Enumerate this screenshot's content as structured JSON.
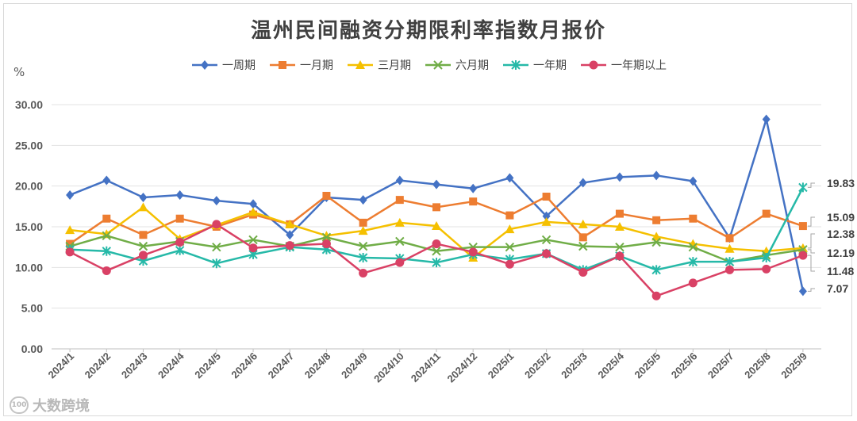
{
  "watermark": {
    "text": "大数跨境",
    "logo_text": "100"
  },
  "chart_data": {
    "type": "line",
    "title": "温州民间融资分期限利率指数月报价",
    "ylabel": "%",
    "xlabel": "",
    "ylim": [
      0,
      30
    ],
    "yticks": [
      "0.00",
      "5.00",
      "10.00",
      "15.00",
      "20.00",
      "25.00",
      "30.00"
    ],
    "grid": true,
    "legend_position": "top",
    "categories": [
      "2024/1",
      "2024/2",
      "2024/3",
      "2024/4",
      "2024/5",
      "2024/6",
      "2024/7",
      "2024/8",
      "2024/9",
      "2024/10",
      "2024/11",
      "2024/12",
      "2025/1",
      "2025/2",
      "2025/3",
      "2025/4",
      "2025/5",
      "2025/6",
      "2025/7",
      "2025/8",
      "2025/9"
    ],
    "series": [
      {
        "name": "一周期",
        "color": "#4472c4",
        "marker": "diamond",
        "values": [
          18.9,
          20.7,
          18.6,
          18.9,
          18.2,
          17.8,
          14.0,
          18.6,
          18.3,
          20.7,
          20.2,
          19.7,
          21.0,
          16.3,
          20.4,
          21.1,
          21.3,
          20.6,
          13.6,
          28.2,
          7.07
        ]
      },
      {
        "name": "一月期",
        "color": "#ed7d31",
        "marker": "square",
        "values": [
          12.9,
          16.0,
          14.0,
          16.0,
          15.0,
          16.5,
          15.3,
          18.8,
          15.5,
          18.3,
          17.4,
          18.1,
          16.4,
          18.7,
          13.7,
          16.6,
          15.8,
          16.0,
          13.6,
          16.6,
          15.09
        ]
      },
      {
        "name": "三月期",
        "color": "#f5c000",
        "marker": "triangle",
        "values": [
          14.6,
          14.1,
          17.4,
          13.5,
          15.2,
          16.8,
          15.3,
          13.9,
          14.5,
          15.5,
          15.1,
          11.2,
          14.7,
          15.6,
          15.3,
          15.0,
          13.8,
          12.9,
          12.3,
          12.0,
          12.38
        ]
      },
      {
        "name": "六月期",
        "color": "#70ad47",
        "marker": "x",
        "values": [
          12.6,
          13.9,
          12.6,
          13.2,
          12.5,
          13.4,
          12.6,
          13.7,
          12.6,
          13.2,
          12.0,
          12.5,
          12.5,
          13.4,
          12.6,
          12.5,
          13.1,
          12.5,
          10.7,
          11.5,
          12.19
        ]
      },
      {
        "name": "一年期",
        "color": "#26b9a8",
        "marker": "asterisk",
        "values": [
          12.2,
          12.0,
          10.8,
          12.1,
          10.5,
          11.6,
          12.5,
          12.2,
          11.2,
          11.1,
          10.6,
          11.6,
          11.0,
          11.7,
          9.7,
          11.4,
          9.7,
          10.7,
          10.7,
          11.2,
          19.83
        ]
      },
      {
        "name": "一年期以上",
        "color": "#d94165",
        "marker": "circle",
        "values": [
          11.9,
          9.6,
          11.5,
          13.1,
          15.3,
          12.4,
          12.7,
          12.9,
          9.3,
          10.6,
          12.9,
          11.9,
          10.4,
          11.7,
          9.4,
          11.4,
          6.5,
          8.1,
          9.7,
          9.8,
          11.48
        ]
      }
    ],
    "end_labels": [
      {
        "text": "19.83",
        "series": "一年期"
      },
      {
        "text": "15.09",
        "series": "一月期"
      },
      {
        "text": "12.38",
        "series": "三月期"
      },
      {
        "text": "12.19",
        "series": "六月期"
      },
      {
        "text": "11.48",
        "series": "一年期以上"
      },
      {
        "text": "7.07",
        "series": "一周期"
      }
    ]
  }
}
